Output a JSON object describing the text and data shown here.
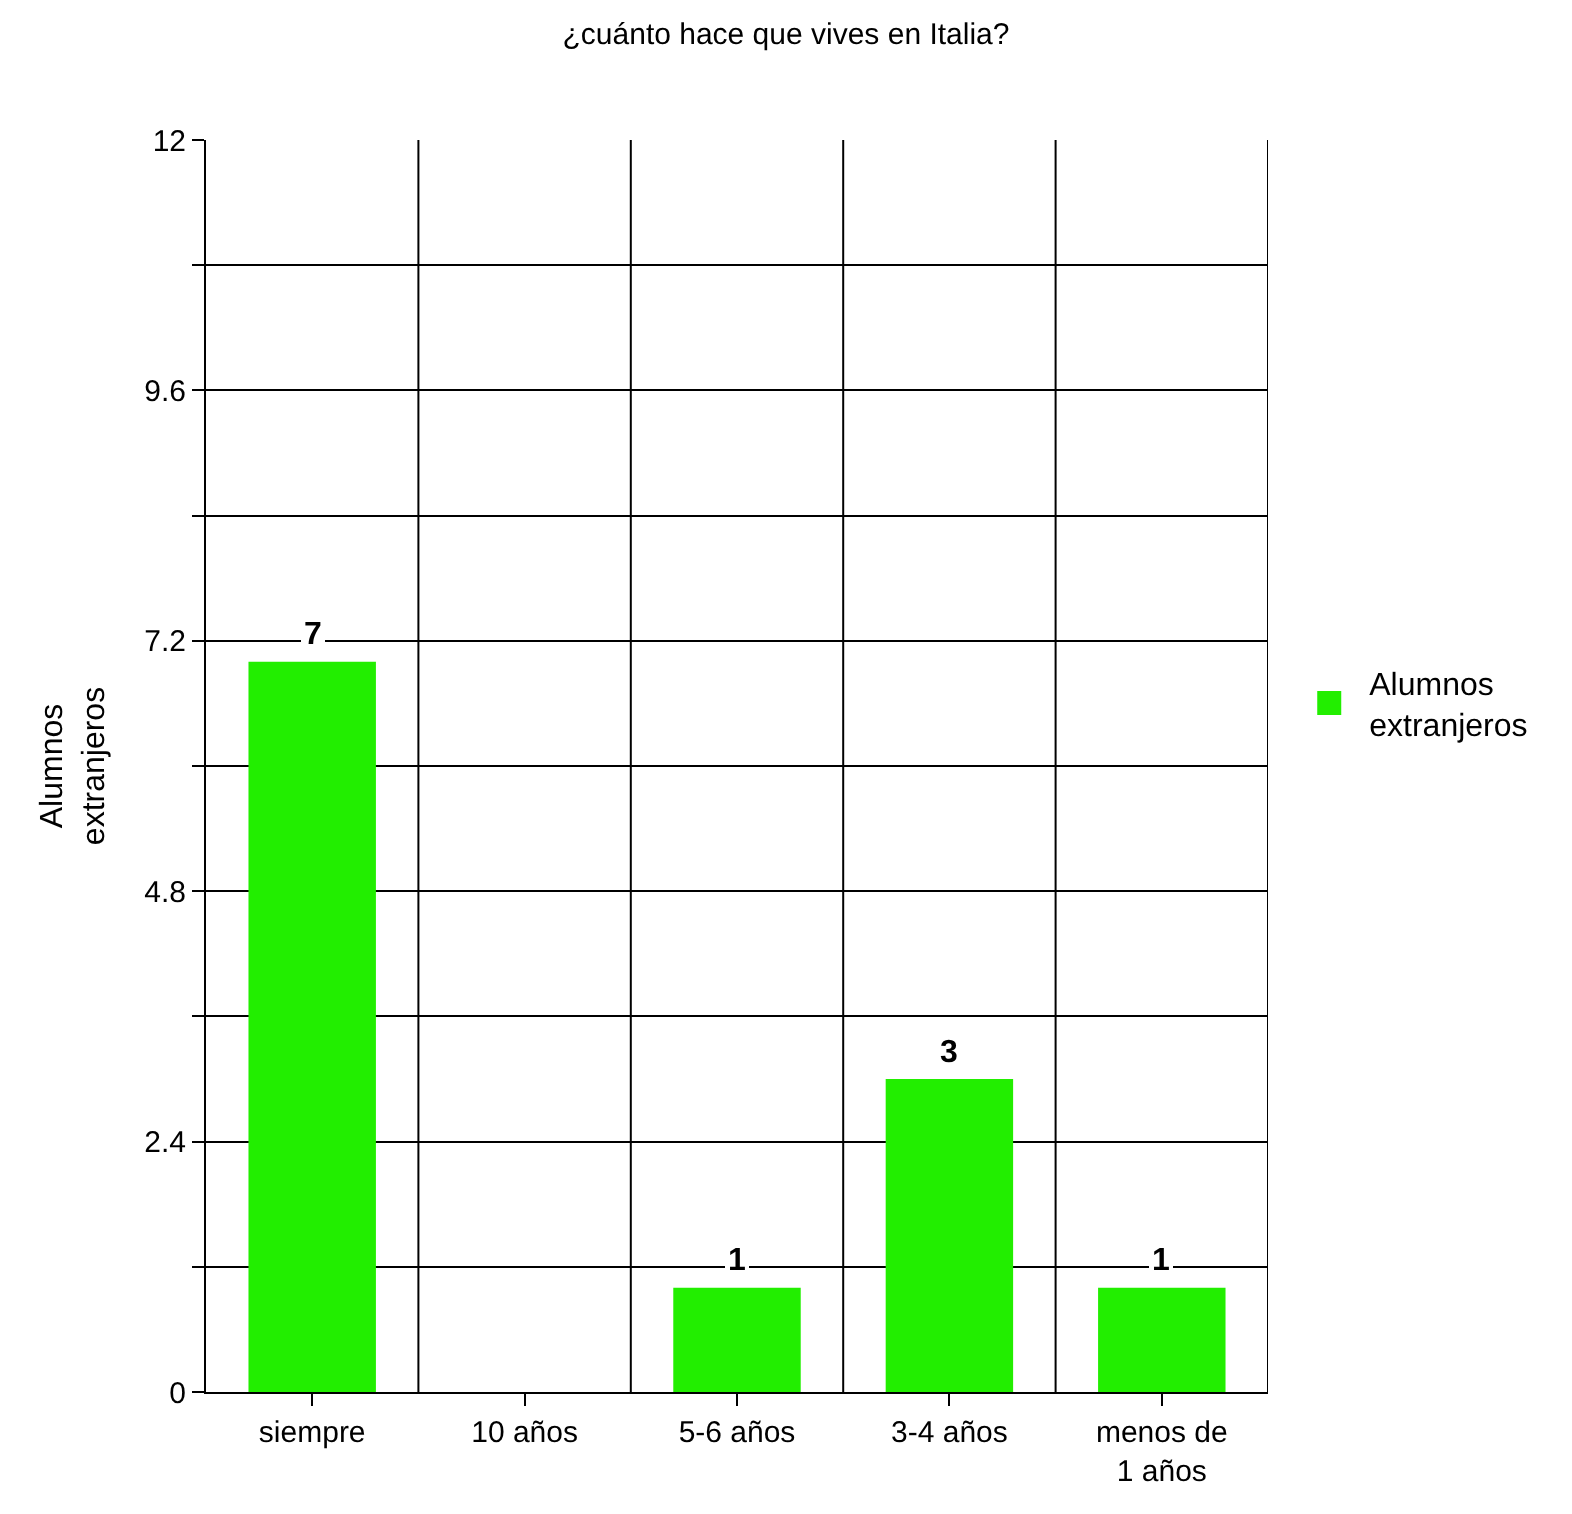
{
  "chart_data": {
    "type": "bar",
    "title": "¿cuánto hace que vives en Italia?",
    "ylabel": "Alumnos extranjeros",
    "categories": [
      "siempre",
      "10 años",
      "5-6 años",
      "3-4 años",
      "menos de 1 años"
    ],
    "series": [
      {
        "name": "Alumnos extranjeros",
        "color": "#22ee00",
        "values": [
          7,
          0,
          1,
          3,
          1
        ],
        "value_labels": [
          "7",
          null,
          "1",
          "3",
          "1"
        ]
      }
    ],
    "ylim": [
      0,
      12
    ],
    "yticks": [
      0,
      {
        "value": 1.2,
        "label": null
      },
      2.4,
      {
        "value": 3.6,
        "label": null
      },
      4.8,
      {
        "value": 6,
        "label": null
      },
      7.2,
      {
        "value": 8.4,
        "label": null
      },
      9.6,
      {
        "value": 10.8,
        "label": null
      },
      12
    ],
    "grid": true,
    "legend": "right"
  }
}
